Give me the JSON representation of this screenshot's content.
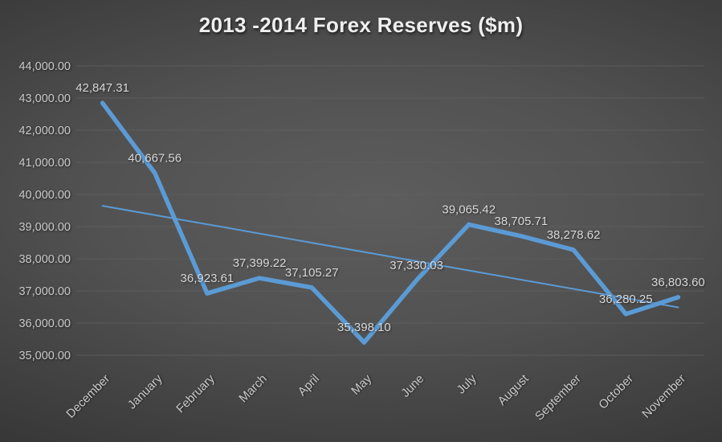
{
  "chart_data": {
    "type": "line",
    "title": "2013 -2014 Forex Reserves ($m)",
    "categories": [
      "December",
      "January",
      "February",
      "March",
      "April",
      "May",
      "June",
      "July",
      "August",
      "September",
      "October",
      "November"
    ],
    "series": [
      {
        "name": "Forex Reserves",
        "color": "#5B9BD5",
        "values": [
          42847.31,
          40667.56,
          36923.61,
          37399.22,
          37105.27,
          35398.1,
          37330.03,
          39065.42,
          38705.71,
          38278.62,
          36280.25,
          36803.6
        ],
        "labels": [
          "42,847.31",
          "40,667.56",
          "36,923.61",
          "37,399.22",
          "37,105.27",
          "35,398.10",
          "37,330.03",
          "39,065.42",
          "38,705.71",
          "38,278.62",
          "36,280.25",
          "36,803.60"
        ]
      }
    ],
    "trendline": {
      "color": "#5B9BD5",
      "start_value": 39646.6,
      "end_value": 36487.5
    },
    "y_axis": {
      "min": 35000,
      "max": 44000,
      "step": 1000,
      "tick_labels": [
        "35,000.00",
        "36,000.00",
        "37,000.00",
        "38,000.00",
        "39,000.00",
        "40,000.00",
        "41,000.00",
        "42,000.00",
        "43,000.00",
        "44,000.00"
      ]
    },
    "xlabel": "",
    "ylabel": "",
    "grid": true,
    "legend": "none",
    "x_label_rotation_deg": -45
  },
  "style_colors": {
    "series_line": "#5B9BD5",
    "gridline": "#606060",
    "axis_text": "#c9c9c9",
    "data_label_text": "#d8d8d8",
    "title_text": "#efefef"
  }
}
